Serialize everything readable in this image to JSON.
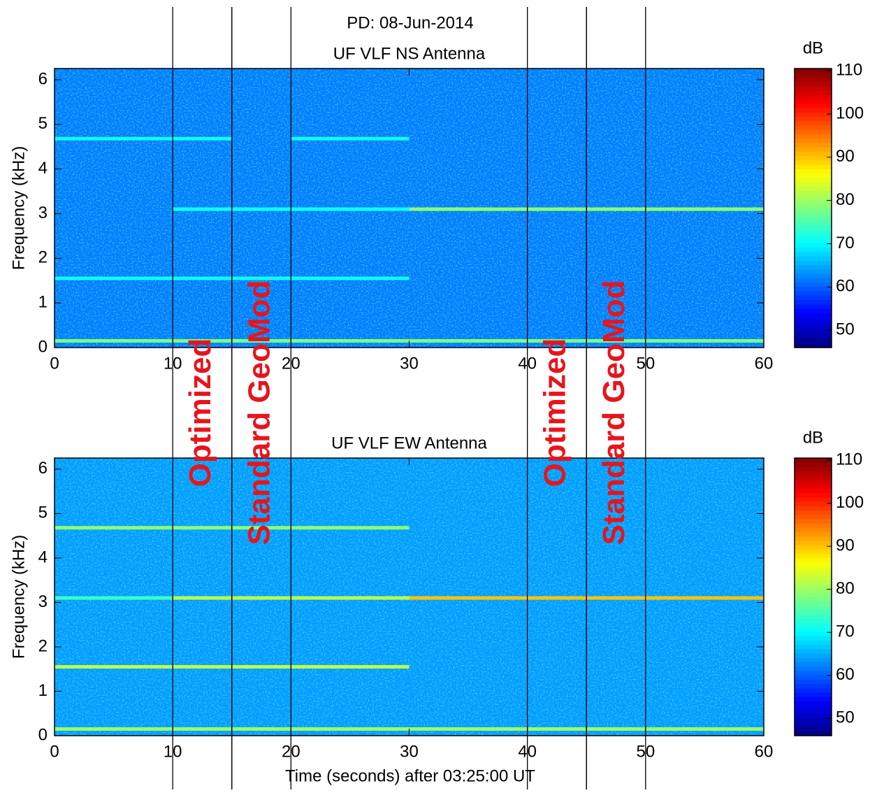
{
  "title": "PD: 08-Jun-2014",
  "xlabel": "Time (seconds) after 03:25:00 UT",
  "intervals": [
    {
      "label": "Optimized",
      "start": 10,
      "end": 15
    },
    {
      "label": "Standard GeoMod",
      "start": 15,
      "end": 20
    },
    {
      "label": "Optimized",
      "start": 40,
      "end": 45
    },
    {
      "label": "Standard GeoMod",
      "start": 45,
      "end": 50
    }
  ],
  "chart_data": [
    {
      "type": "spectrogram",
      "title": "UF VLF NS Antenna",
      "ylabel": "Frequency (kHz)",
      "xlim": [
        0,
        60
      ],
      "xticks": [
        0,
        10,
        20,
        30,
        40,
        50,
        60
      ],
      "ylim": [
        0,
        6.25
      ],
      "yticks": [
        0,
        1,
        2,
        3,
        4,
        5,
        6
      ],
      "colorbar_label": "dB",
      "clim": [
        46,
        110.5
      ],
      "cticks": [
        50,
        60,
        70,
        80,
        90,
        100,
        110
      ],
      "colormap": "jet",
      "background_level": 62,
      "tones": [
        {
          "freq": 4.68,
          "start": 0,
          "end": 15,
          "level": 71
        },
        {
          "freq": 4.68,
          "start": 20,
          "end": 30,
          "level": 71
        },
        {
          "freq": 3.1,
          "start": 10,
          "end": 30,
          "level": 71
        },
        {
          "freq": 3.1,
          "start": 30,
          "end": 60,
          "level": 79
        },
        {
          "freq": 1.55,
          "start": 0,
          "end": 30,
          "level": 71
        },
        {
          "freq": 0.15,
          "start": 0,
          "end": 60,
          "level": 78
        }
      ]
    },
    {
      "type": "spectrogram",
      "title": "UF VLF EW Antenna",
      "ylabel": "Frequency (kHz)",
      "xlim": [
        0,
        60
      ],
      "xticks": [
        0,
        10,
        20,
        30,
        40,
        50,
        60
      ],
      "ylim": [
        0,
        6.25
      ],
      "yticks": [
        0,
        1,
        2,
        3,
        4,
        5,
        6
      ],
      "colorbar_label": "dB",
      "clim": [
        46,
        110.5
      ],
      "cticks": [
        50,
        60,
        70,
        80,
        90,
        100,
        110
      ],
      "colormap": "jet",
      "background_level": 64,
      "tones": [
        {
          "freq": 4.68,
          "start": 0,
          "end": 30,
          "level": 79
        },
        {
          "freq": 3.1,
          "start": 0,
          "end": 10,
          "level": 74
        },
        {
          "freq": 3.1,
          "start": 10,
          "end": 30,
          "level": 82
        },
        {
          "freq": 3.1,
          "start": 30,
          "end": 60,
          "level": 90
        },
        {
          "freq": 1.55,
          "start": 0,
          "end": 30,
          "level": 82
        },
        {
          "freq": 0.15,
          "start": 0,
          "end": 60,
          "level": 80
        }
      ]
    }
  ]
}
